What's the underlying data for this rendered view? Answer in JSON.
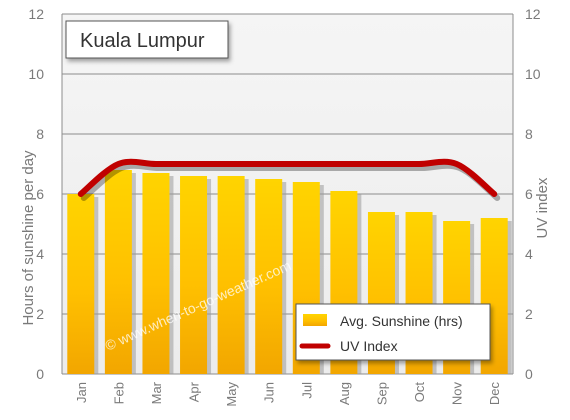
{
  "chart_data": {
    "type": "bar",
    "title": "Kuala Lumpur",
    "categories": [
      "Jan",
      "Feb",
      "Mar",
      "Apr",
      "May",
      "Jun",
      "Jul",
      "Aug",
      "Sep",
      "Oct",
      "Nov",
      "Dec"
    ],
    "series": [
      {
        "name": "Avg. Sunshine (hrs)",
        "type": "bar",
        "axis": "left",
        "color": "#ffc400",
        "values": [
          6.0,
          6.8,
          6.7,
          6.6,
          6.6,
          6.5,
          6.4,
          6.1,
          5.4,
          5.4,
          5.1,
          5.2
        ]
      },
      {
        "name": "UV Index",
        "type": "line",
        "axis": "right",
        "color": "#c00000",
        "values": [
          6,
          7,
          7,
          7,
          7,
          7,
          7,
          7,
          7,
          7,
          7,
          6
        ]
      }
    ],
    "ylabel": "Hours of sunshine per day",
    "y2label": "UV index",
    "ylim": [
      0,
      12
    ],
    "y2lim": [
      0,
      12
    ],
    "yticks": [
      0,
      2,
      4,
      6,
      8,
      10,
      12
    ],
    "grid": true,
    "legend_position": "bottom-right",
    "watermark": "© www.when-to-go-weather.com"
  }
}
